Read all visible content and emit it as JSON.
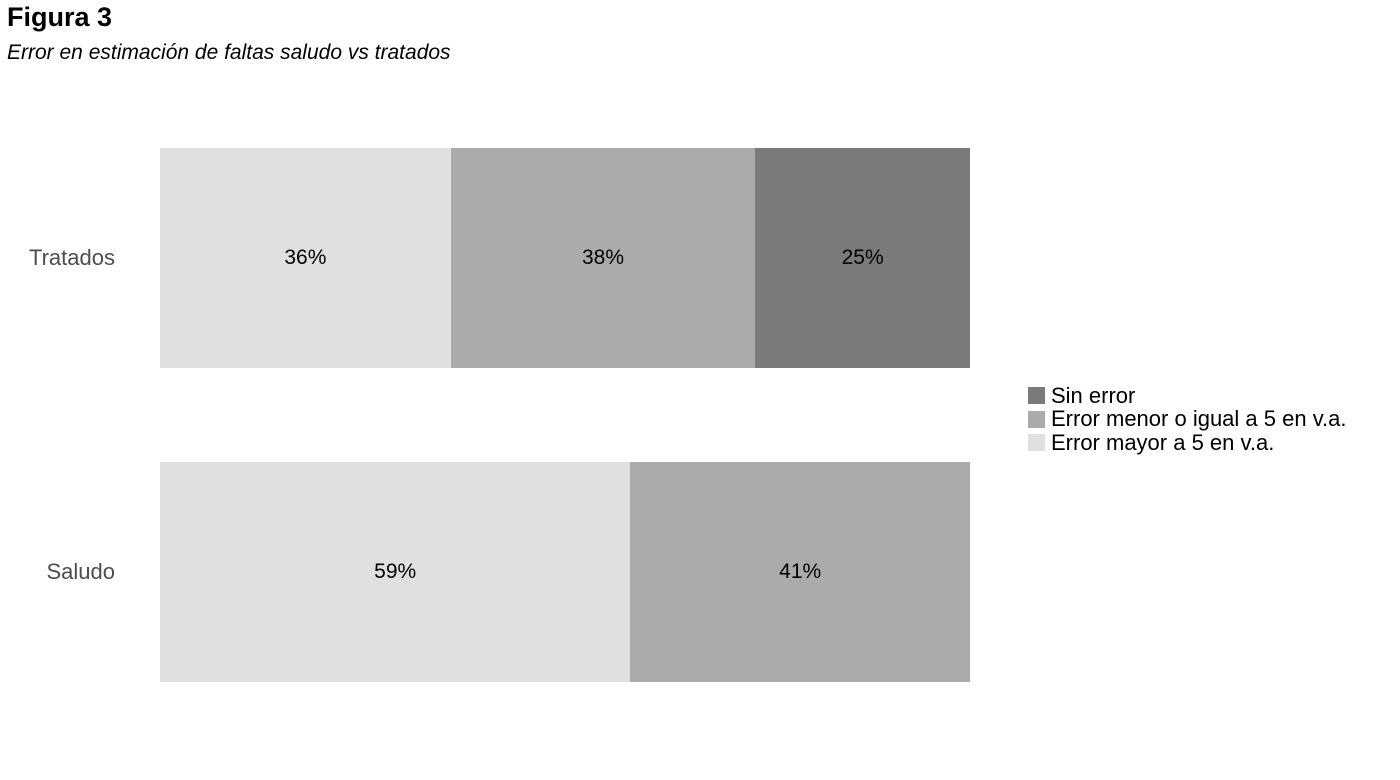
{
  "title": "Figura 3",
  "subtitle": "Error en estimación de faltas saludo vs tratados",
  "colors": {
    "sin_error": "#7a7a7a",
    "error_menor_igual_5": "#ababab",
    "error_mayor_5": "#e0e0e0",
    "axis_text": "#4d4d4d",
    "background": "#ffffff"
  },
  "chart_data": {
    "type": "bar",
    "orientation": "horizontal",
    "stacked": true,
    "title": "Figura 3",
    "subtitle": "Error en estimación de faltas saludo vs tratados",
    "value_unit": "percent",
    "categories": [
      "Tratados",
      "Saludo"
    ],
    "series": [
      {
        "name": "Error mayor a 5 en v.a.",
        "color": "#e0e0e0",
        "values": [
          36,
          59
        ]
      },
      {
        "name": "Error menor o igual a 5 en v.a.",
        "color": "#ababab",
        "values": [
          38,
          41
        ]
      },
      {
        "name": "Sin error",
        "color": "#7a7a7a",
        "values": [
          25,
          0
        ]
      }
    ],
    "data_labels": {
      "Tratados": [
        "36%",
        "38%",
        "25%"
      ],
      "Saludo": [
        "59%",
        "41%"
      ]
    },
    "legend_position": "right",
    "legend": [
      {
        "label": "Sin error",
        "color": "#7a7a7a"
      },
      {
        "label": "Error menor o igual a 5 en v.a.",
        "color": "#ababab"
      },
      {
        "label": "Error mayor a 5 en v.a.",
        "color": "#e0e0e0"
      }
    ],
    "grid": false,
    "xlabel": "",
    "ylabel": ""
  }
}
